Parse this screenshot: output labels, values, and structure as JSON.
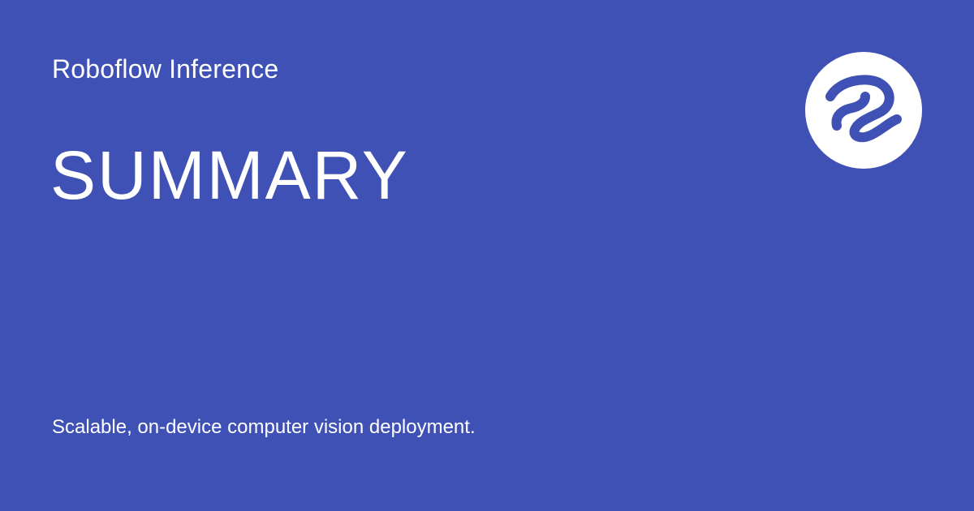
{
  "header": {
    "site_name": "Roboflow Inference"
  },
  "main": {
    "title": "SUMMARY",
    "tagline": "Scalable, on-device computer vision deployment."
  },
  "logo": {
    "icon": "roboflow-logo-icon"
  },
  "colors": {
    "background": "#3f51b5",
    "text": "#ffffff",
    "logo_circle": "#ffffff",
    "logo_mark": "#3f51b5"
  }
}
